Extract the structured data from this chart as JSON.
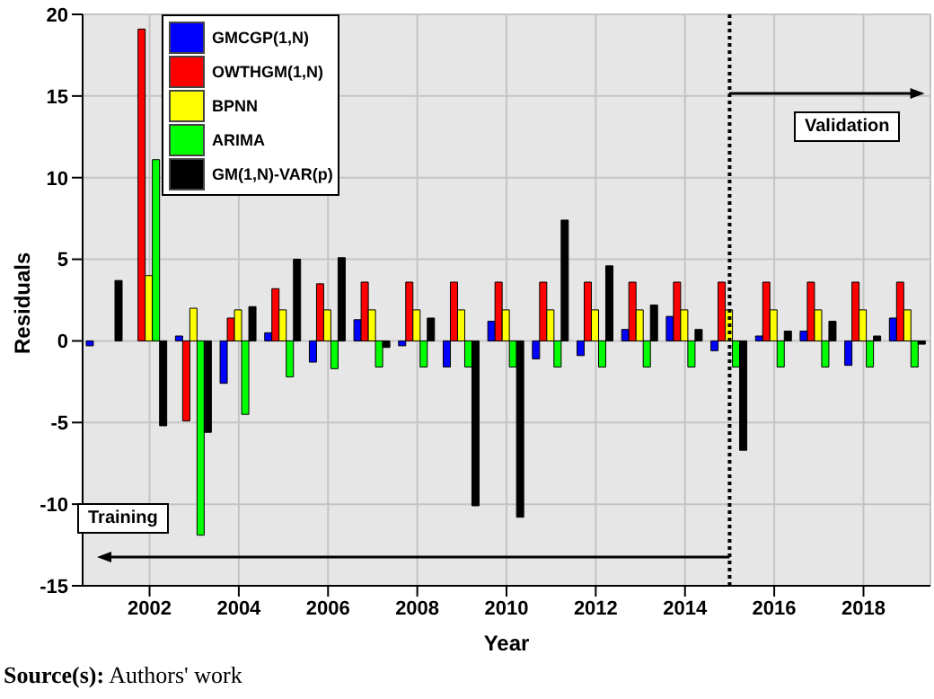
{
  "chart_data": {
    "type": "bar",
    "xlabel": "Year",
    "ylabel": "Residuals",
    "x": [
      2001,
      2002,
      2003,
      2004,
      2005,
      2006,
      2007,
      2008,
      2009,
      2010,
      2011,
      2012,
      2013,
      2014,
      2015,
      2016,
      2017,
      2018,
      2019
    ],
    "xlim": [
      2000.5,
      2019.5
    ],
    "xticks": [
      2002,
      2004,
      2006,
      2008,
      2010,
      2012,
      2014,
      2016,
      2018
    ],
    "ylim": [
      -15,
      20
    ],
    "yticks": [
      -15,
      -10,
      -5,
      0,
      5,
      10,
      15,
      20
    ],
    "series": [
      {
        "name": "GMCGP(1,N)",
        "color": "#0000ff",
        "values": [
          -0.3,
          null,
          0.3,
          -2.6,
          0.5,
          -1.3,
          1.3,
          -0.3,
          -1.6,
          1.2,
          -1.1,
          -0.9,
          0.7,
          1.5,
          -0.6,
          0.3,
          0.6,
          -1.5,
          1.4
        ]
      },
      {
        "name": "OWTHGM(1,N)",
        "color": "#ff0000",
        "values": [
          null,
          19.1,
          -4.9,
          1.4,
          3.2,
          3.5,
          3.6,
          3.6,
          3.6,
          3.6,
          3.6,
          3.6,
          3.6,
          3.6,
          3.6,
          3.6,
          3.6,
          3.6,
          3.6
        ]
      },
      {
        "name": "BPNN",
        "color": "#ffff00",
        "values": [
          null,
          4.0,
          2.0,
          1.9,
          1.9,
          1.9,
          1.9,
          1.9,
          1.9,
          1.9,
          1.9,
          1.9,
          1.9,
          1.9,
          1.9,
          1.9,
          1.9,
          1.9,
          1.9
        ]
      },
      {
        "name": "ARIMA",
        "color": "#00ff00",
        "values": [
          null,
          11.1,
          -11.9,
          -4.5,
          -2.2,
          -1.7,
          -1.6,
          -1.6,
          -1.6,
          -1.6,
          -1.6,
          -1.6,
          -1.6,
          -1.6,
          -1.6,
          -1.6,
          -1.6,
          -1.6,
          -1.6
        ]
      },
      {
        "name": "GM(1,N)-VAR(p)",
        "color": "#000000",
        "values": [
          3.7,
          -5.2,
          -5.6,
          2.1,
          5.0,
          5.1,
          -0.4,
          1.4,
          -10.1,
          -10.8,
          7.4,
          4.6,
          2.2,
          0.7,
          -6.7,
          0.6,
          1.2,
          0.3,
          -0.2
        ]
      }
    ],
    "ref_lines": [
      {
        "axis": "x",
        "value": 2015,
        "color": "#000000",
        "line_style": "dotted"
      }
    ],
    "annotations": [
      "Training",
      "Validation",
      "Source(s): Authors' work"
    ],
    "grid": true,
    "legend": "top left"
  }
}
